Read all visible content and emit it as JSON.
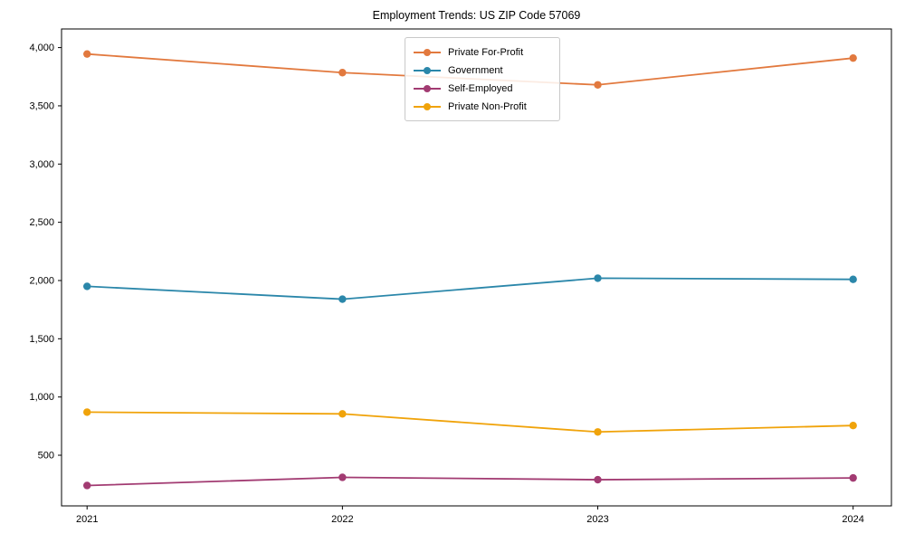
{
  "figure": {
    "background": "#ffffff"
  },
  "chart_data": {
    "type": "line",
    "title": "Employment Trends: US ZIP Code 57069",
    "x": [
      2021,
      2022,
      2023,
      2024
    ],
    "x_tick_labels": [
      "2021",
      "2022",
      "2023",
      "2024"
    ],
    "y_ticks": [
      500,
      1000,
      1500,
      2000,
      2500,
      3000,
      3500,
      4000
    ],
    "y_tick_labels": [
      "500",
      "1,000",
      "1,500",
      "2,000",
      "2,500",
      "3,000",
      "3,500",
      "4,000"
    ],
    "xlim": [
      2020.9,
      2024.15
    ],
    "ylim": [
      65,
      4160
    ],
    "grid": false,
    "marker": "circle",
    "axis_color": "#000000",
    "text_color": "#000000",
    "legend": {
      "position": "upper center",
      "border_color": "#c9c9c9",
      "entries": [
        "Private For-Profit",
        "Government",
        "Self-Employed",
        "Private Non-Profit"
      ]
    },
    "series": [
      {
        "name": "Private For-Profit",
        "color": "#e2793e",
        "values": [
          3945,
          3785,
          3680,
          3910
        ]
      },
      {
        "name": "Government",
        "color": "#2b87aa",
        "values": [
          1950,
          1840,
          2020,
          2010
        ]
      },
      {
        "name": "Self-Employed",
        "color": "#a23b72",
        "values": [
          240,
          310,
          290,
          305
        ]
      },
      {
        "name": "Private Non-Profit",
        "color": "#f0a30a",
        "values": [
          870,
          855,
          700,
          755
        ]
      }
    ]
  }
}
